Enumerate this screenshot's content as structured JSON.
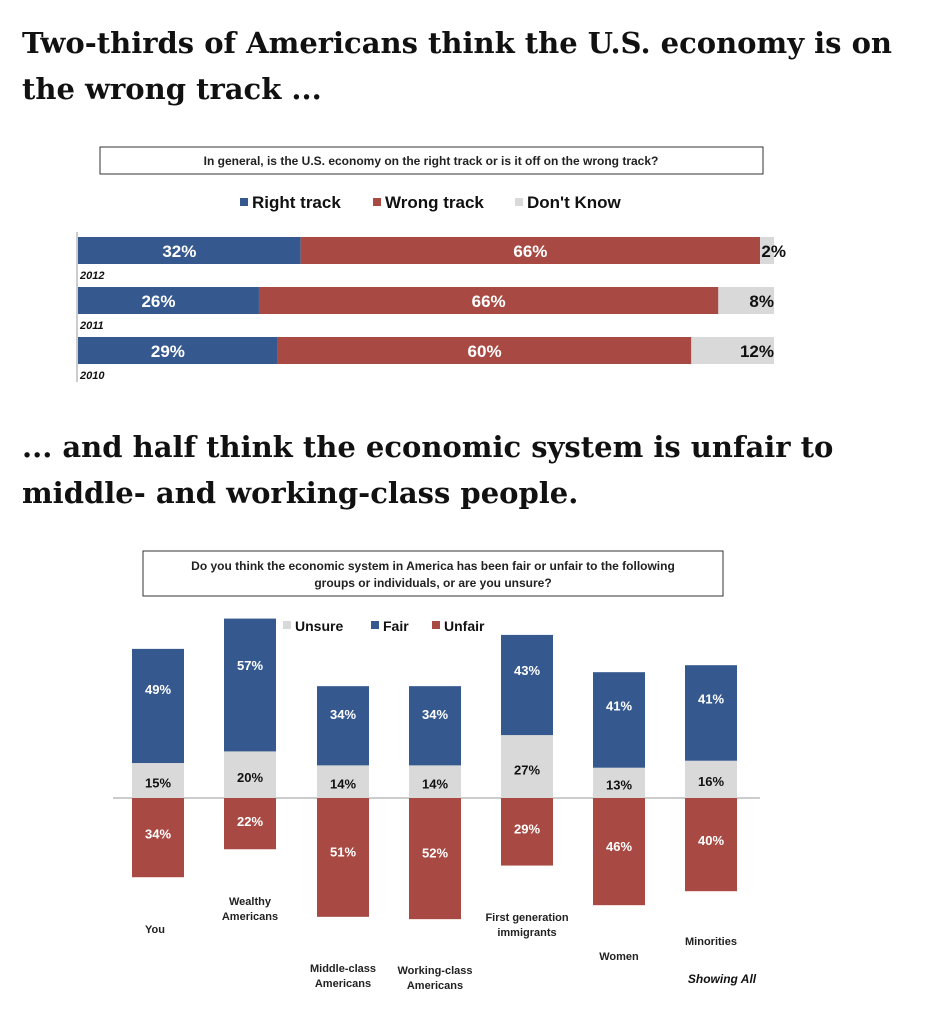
{
  "headings": {
    "first": "Two-thirds of Americans think the U.S. economy is on the wrong track ...",
    "second": "... and half think the economic system is unfair to middle- and working-class people."
  },
  "colors": {
    "right": "#35598f",
    "wrong": "#a84a43",
    "dontknow": "#d9d9d9"
  },
  "chart_data": [
    {
      "type": "bar",
      "orientation": "horizontal-stacked",
      "title": "In general, is the U.S. economy on the right track or is it off on the wrong track?",
      "legend": [
        "Right track",
        "Wrong track",
        "Don't Know"
      ],
      "legend_position": "top",
      "categories": [
        "2012",
        "2011",
        "2010"
      ],
      "series": [
        {
          "name": "Right track",
          "values": [
            32,
            26,
            29
          ],
          "labels": [
            "32%",
            "26%",
            "29%"
          ]
        },
        {
          "name": "Wrong track",
          "values": [
            66,
            66,
            60
          ],
          "labels": [
            "66%",
            "66%",
            "60%"
          ]
        },
        {
          "name": "Don't Know",
          "values": [
            2,
            8,
            12
          ],
          "labels": [
            "2%",
            "8%",
            "12%"
          ]
        }
      ]
    },
    {
      "type": "bar",
      "orientation": "vertical-diverging",
      "title": "Do you think the economic system in America has been fair or unfair to the following groups or individuals, or are you unsure?",
      "legend": [
        "Unsure",
        "Fair",
        "Unfair"
      ],
      "legend_position": "top",
      "categories": [
        "You",
        "Wealthy Americans",
        "Middle-class Americans",
        "Working-class Americans",
        "First generation immigrants",
        "Women",
        "Minorities"
      ],
      "category_lines": [
        [
          "You"
        ],
        [
          "Wealthy",
          "Americans"
        ],
        [
          "Middle-class",
          "Americans"
        ],
        [
          "Working-class",
          "Americans"
        ],
        [
          "First generation",
          "immigrants"
        ],
        [
          "Women"
        ],
        [
          "Minorities"
        ]
      ],
      "series": [
        {
          "name": "Fair",
          "values": [
            49,
            57,
            34,
            34,
            43,
            41,
            41
          ],
          "labels": [
            "49%",
            "57%",
            "34%",
            "34%",
            "43%",
            "41%",
            "41%"
          ]
        },
        {
          "name": "Unsure",
          "values": [
            15,
            20,
            14,
            14,
            27,
            13,
            16
          ],
          "labels": [
            "15%",
            "20%",
            "14%",
            "14%",
            "27%",
            "13%",
            "16%"
          ]
        },
        {
          "name": "Unfair",
          "values": [
            34,
            22,
            51,
            52,
            29,
            46,
            40
          ],
          "labels": [
            "34%",
            "22%",
            "51%",
            "52%",
            "29%",
            "46%",
            "40%"
          ]
        }
      ],
      "footer": "Showing All"
    }
  ]
}
